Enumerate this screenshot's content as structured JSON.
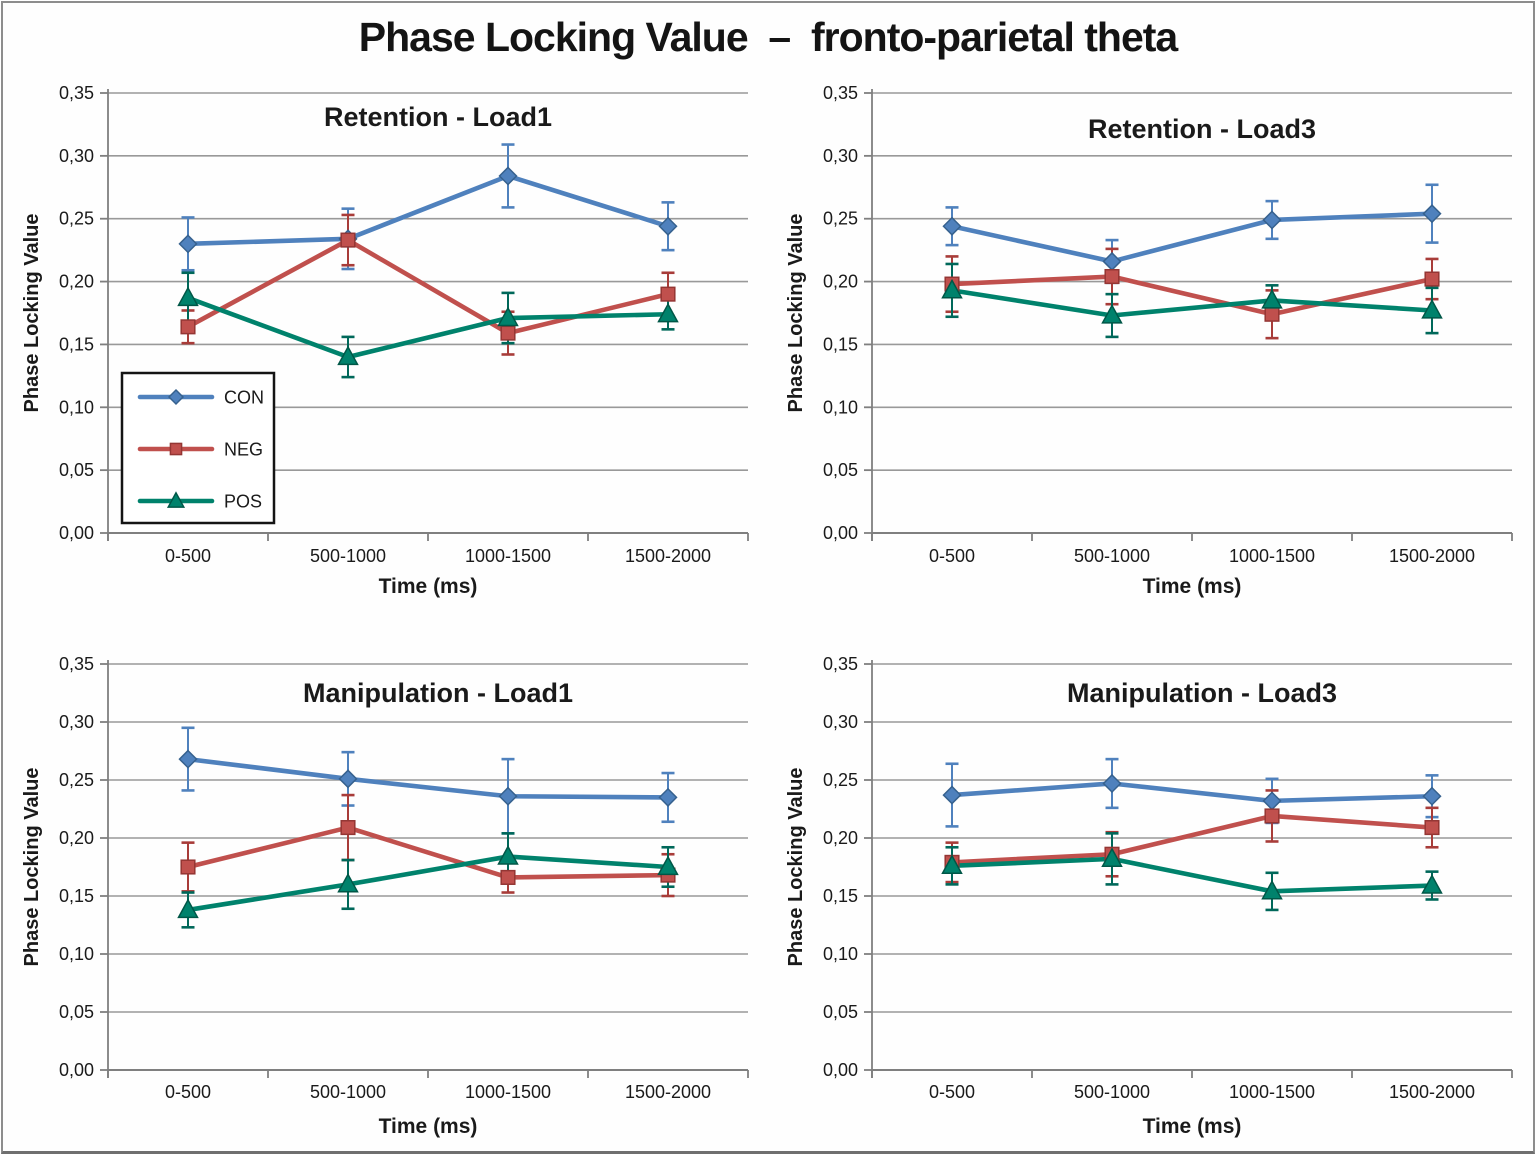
{
  "figure": {
    "title": "Phase Locking Value  –  fronto-parietal theta"
  },
  "axes": {
    "x_label": "Time (ms)",
    "y_label": "Phase Locking Value",
    "categories": [
      "0-500",
      "500-1000",
      "1000-1500",
      "1500-2000"
    ],
    "y_tick_labels": [
      "0,00",
      "0,05",
      "0,10",
      "0,15",
      "0,20",
      "0,25",
      "0,30",
      "0,35"
    ],
    "y_min": 0,
    "y_max": 0.35,
    "y_step": 0.05
  },
  "colors": {
    "grid": "#999999",
    "axis": "#7f7f7f",
    "text": "#1a1a1a",
    "frame": "#8d8d8d",
    "background": "#ffffff"
  },
  "legend": {
    "location": "lower-left of Retention - Load1 panel",
    "entries": [
      {
        "label": "CON",
        "marker": "diamond",
        "color": "#4f81bd",
        "edge": "#36618e",
        "error_color": "#4f81bd"
      },
      {
        "label": "NEG",
        "marker": "square",
        "color": "#c0504d",
        "edge": "#943634",
        "error_color": "#a83c39"
      },
      {
        "label": "POS",
        "marker": "triangle",
        "color": "#00826c",
        "edge": "#005747",
        "error_color": "#00685a"
      }
    ]
  },
  "chart_data": [
    {
      "type": "line",
      "title": "Retention - Load1",
      "xlabel": "Time (ms)",
      "ylabel": "Phase Locking Value",
      "categories": [
        "0-500",
        "500-1000",
        "1000-1500",
        "1500-2000"
      ],
      "ylim": [
        0,
        0.35
      ],
      "grid": true,
      "show_legend": true,
      "series": [
        {
          "name": "CON",
          "values": [
            0.23,
            0.234,
            0.284,
            0.244
          ],
          "errors": [
            0.021,
            0.024,
            0.025,
            0.019
          ]
        },
        {
          "name": "NEG",
          "values": [
            0.164,
            0.233,
            0.159,
            0.19
          ],
          "errors": [
            0.013,
            0.02,
            0.017,
            0.017
          ]
        },
        {
          "name": "POS",
          "values": [
            0.187,
            0.14,
            0.171,
            0.174
          ],
          "errors": [
            0.02,
            0.016,
            0.02,
            0.012
          ]
        }
      ]
    },
    {
      "type": "line",
      "title": "Retention - Load3",
      "xlabel": "Time (ms)",
      "ylabel": "Phase Locking Value",
      "categories": [
        "0-500",
        "500-1000",
        "1000-1500",
        "1500-2000"
      ],
      "ylim": [
        0,
        0.35
      ],
      "grid": true,
      "show_legend": false,
      "series": [
        {
          "name": "CON",
          "values": [
            0.244,
            0.216,
            0.249,
            0.254
          ],
          "errors": [
            0.015,
            0.017,
            0.015,
            0.023
          ]
        },
        {
          "name": "NEG",
          "values": [
            0.198,
            0.204,
            0.174,
            0.202
          ],
          "errors": [
            0.022,
            0.022,
            0.019,
            0.016
          ]
        },
        {
          "name": "POS",
          "values": [
            0.193,
            0.173,
            0.185,
            0.177
          ],
          "errors": [
            0.021,
            0.017,
            0.012,
            0.018
          ]
        }
      ]
    },
    {
      "type": "line",
      "title": "Manipulation - Load1",
      "xlabel": "Time (ms)",
      "ylabel": "Phase Locking Value",
      "categories": [
        "0-500",
        "500-1000",
        "1000-1500",
        "1500-2000"
      ],
      "ylim": [
        0,
        0.35
      ],
      "grid": true,
      "show_legend": false,
      "series": [
        {
          "name": "CON",
          "values": [
            0.268,
            0.251,
            0.236,
            0.235
          ],
          "errors": [
            0.027,
            0.023,
            0.032,
            0.021
          ]
        },
        {
          "name": "NEG",
          "values": [
            0.175,
            0.209,
            0.166,
            0.168
          ],
          "errors": [
            0.021,
            0.028,
            0.013,
            0.018
          ]
        },
        {
          "name": "POS",
          "values": [
            0.138,
            0.16,
            0.184,
            0.175
          ],
          "errors": [
            0.015,
            0.021,
            0.02,
            0.017
          ]
        }
      ]
    },
    {
      "type": "line",
      "title": "Manipulation - Load3",
      "xlabel": "Time (ms)",
      "ylabel": "Phase Locking Value",
      "categories": [
        "0-500",
        "500-1000",
        "1000-1500",
        "1500-2000"
      ],
      "ylim": [
        0,
        0.35
      ],
      "grid": true,
      "show_legend": false,
      "series": [
        {
          "name": "CON",
          "values": [
            0.237,
            0.247,
            0.232,
            0.236
          ],
          "errors": [
            0.027,
            0.021,
            0.019,
            0.018
          ]
        },
        {
          "name": "NEG",
          "values": [
            0.179,
            0.186,
            0.219,
            0.209
          ],
          "errors": [
            0.017,
            0.019,
            0.022,
            0.017
          ]
        },
        {
          "name": "POS",
          "values": [
            0.176,
            0.182,
            0.154,
            0.159
          ],
          "errors": [
            0.016,
            0.022,
            0.016,
            0.012
          ]
        }
      ]
    }
  ]
}
